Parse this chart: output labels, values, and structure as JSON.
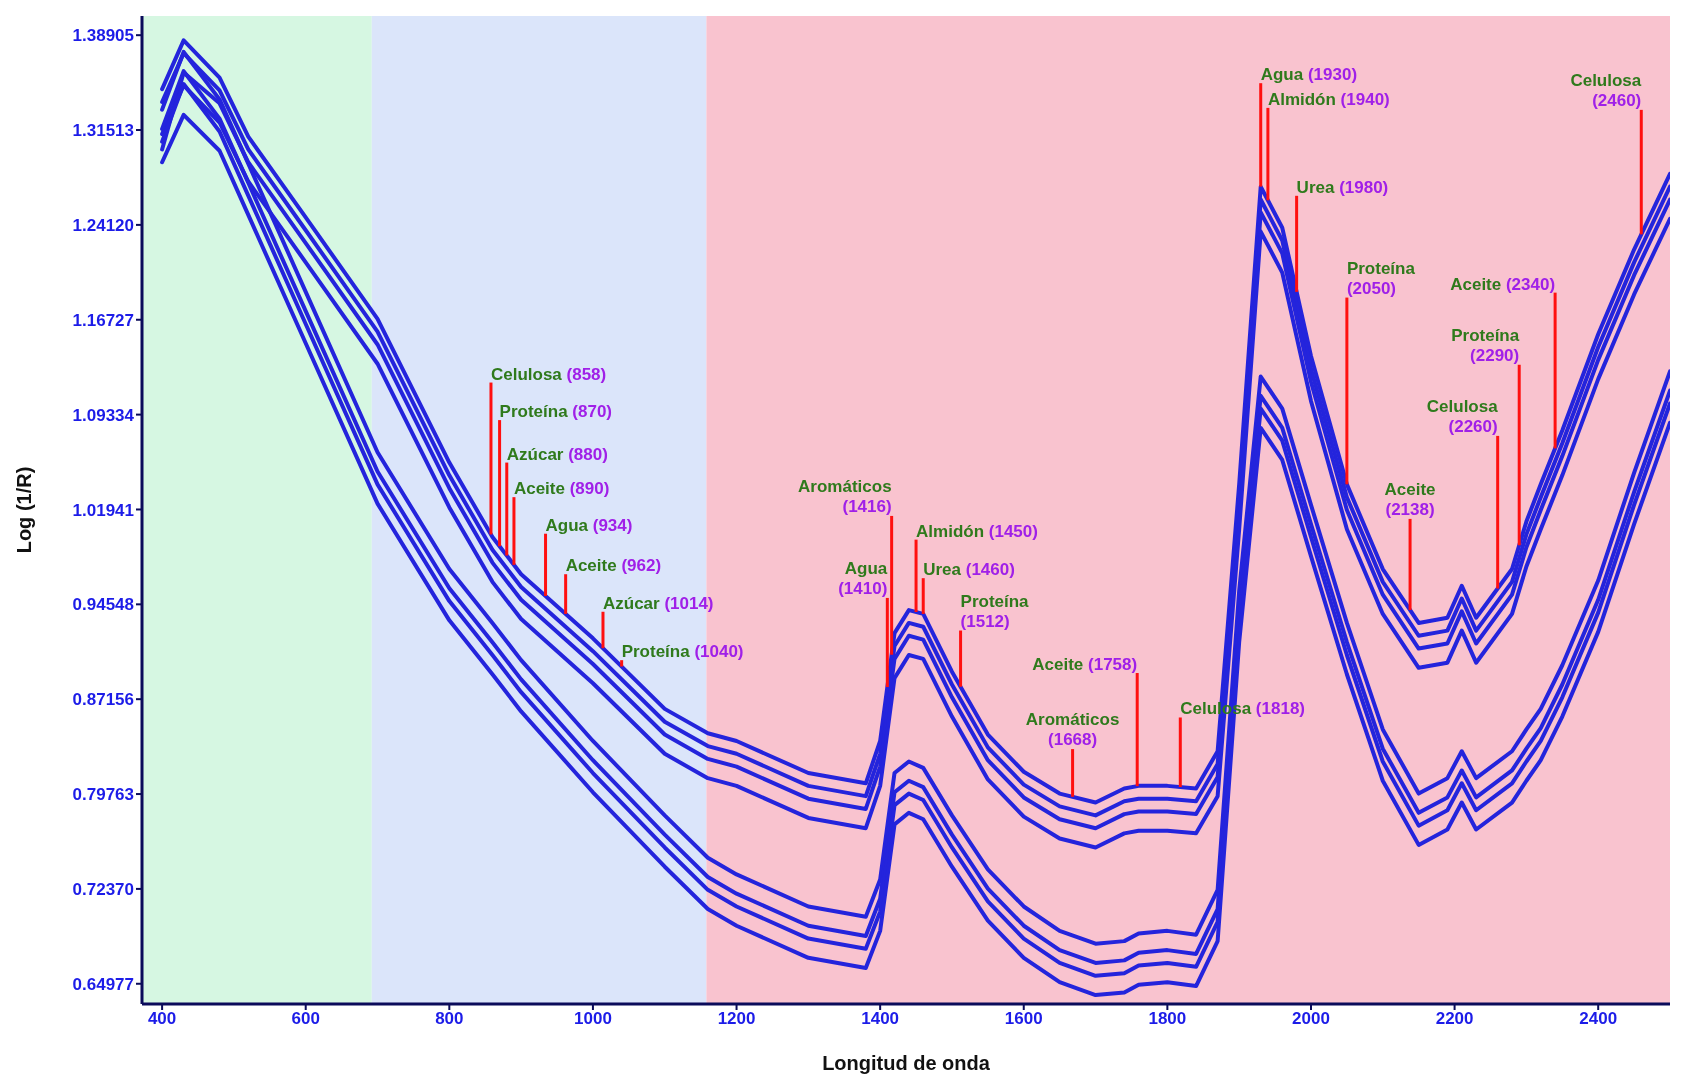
{
  "chart_data": {
    "type": "line",
    "xlabel": "Longitud de onda",
    "ylabel": "Log (1/R)",
    "x": [
      400,
      430,
      480,
      520,
      600,
      700,
      800,
      860,
      900,
      1000,
      1100,
      1160,
      1200,
      1300,
      1380,
      1400,
      1420,
      1440,
      1460,
      1500,
      1550,
      1600,
      1650,
      1700,
      1740,
      1760,
      1800,
      1840,
      1870,
      1900,
      1930,
      1960,
      2000,
      2050,
      2100,
      2150,
      2190,
      2210,
      2230,
      2280,
      2300,
      2320,
      2350,
      2400,
      2450,
      2500
    ],
    "series": [
      {
        "color": "#2424dc",
        "values": [
          1.347,
          1.385,
          1.356,
          1.31,
          1.247,
          1.168,
          1.056,
          0.998,
          0.969,
          0.919,
          0.864,
          0.845,
          0.839,
          0.814,
          0.806,
          0.839,
          0.923,
          0.941,
          0.938,
          0.893,
          0.844,
          0.815,
          0.798,
          0.791,
          0.802,
          0.804,
          0.804,
          0.802,
          0.831,
          1.039,
          1.271,
          1.239,
          1.139,
          1.039,
          0.973,
          0.931,
          0.935,
          0.96,
          0.935,
          0.973,
          1.01,
          1.039,
          1.081,
          1.156,
          1.222,
          1.281
        ]
      },
      {
        "color": "#2424dc",
        "values": [
          1.337,
          1.375,
          1.346,
          1.3,
          1.237,
          1.158,
          1.046,
          0.988,
          0.959,
          0.909,
          0.854,
          0.835,
          0.829,
          0.804,
          0.796,
          0.829,
          0.913,
          0.931,
          0.928,
          0.883,
          0.834,
          0.805,
          0.788,
          0.781,
          0.792,
          0.794,
          0.794,
          0.792,
          0.821,
          1.029,
          1.261,
          1.229,
          1.129,
          1.029,
          0.963,
          0.921,
          0.925,
          0.95,
          0.925,
          0.963,
          1.0,
          1.029,
          1.071,
          1.146,
          1.212,
          1.271
        ]
      },
      {
        "color": "#2424dc",
        "values": [
          1.3,
          1.36,
          1.336,
          1.29,
          1.227,
          1.148,
          1.036,
          0.978,
          0.949,
          0.899,
          0.844,
          0.825,
          0.819,
          0.794,
          0.786,
          0.819,
          0.903,
          0.921,
          0.918,
          0.873,
          0.824,
          0.795,
          0.778,
          0.771,
          0.782,
          0.784,
          0.784,
          0.782,
          0.811,
          1.019,
          1.251,
          1.219,
          1.119,
          1.019,
          0.953,
          0.911,
          0.915,
          0.94,
          0.915,
          0.953,
          0.99,
          1.019,
          1.061,
          1.136,
          1.202,
          1.261
        ]
      },
      {
        "color": "#2424dc",
        "values": [
          1.312,
          1.35,
          1.321,
          1.275,
          1.212,
          1.133,
          1.021,
          0.963,
          0.934,
          0.884,
          0.829,
          0.81,
          0.804,
          0.779,
          0.771,
          0.804,
          0.888,
          0.906,
          0.903,
          0.858,
          0.809,
          0.78,
          0.763,
          0.756,
          0.767,
          0.769,
          0.769,
          0.767,
          0.796,
          1.004,
          1.236,
          1.204,
          1.104,
          1.004,
          0.938,
          0.896,
          0.9,
          0.925,
          0.9,
          0.938,
          0.975,
          1.004,
          1.046,
          1.121,
          1.187,
          1.246
        ]
      },
      {
        "color": "#2424dc",
        "values": [
          1.331,
          1.376,
          1.339,
          1.289,
          1.189,
          1.064,
          0.973,
          0.931,
          0.902,
          0.839,
          0.781,
          0.748,
          0.735,
          0.71,
          0.702,
          0.731,
          0.814,
          0.823,
          0.818,
          0.781,
          0.739,
          0.71,
          0.691,
          0.681,
          0.683,
          0.689,
          0.691,
          0.688,
          0.723,
          0.956,
          1.123,
          1.098,
          1.023,
          0.931,
          0.848,
          0.798,
          0.81,
          0.831,
          0.81,
          0.831,
          0.848,
          0.864,
          0.898,
          0.964,
          1.048,
          1.127
        ]
      },
      {
        "color": "#2424dc",
        "values": [
          1.316,
          1.361,
          1.324,
          1.274,
          1.174,
          1.049,
          0.958,
          0.916,
          0.887,
          0.824,
          0.766,
          0.733,
          0.72,
          0.695,
          0.687,
          0.716,
          0.799,
          0.808,
          0.803,
          0.766,
          0.724,
          0.695,
          0.676,
          0.666,
          0.668,
          0.674,
          0.676,
          0.673,
          0.708,
          0.941,
          1.108,
          1.083,
          1.008,
          0.916,
          0.833,
          0.783,
          0.795,
          0.816,
          0.795,
          0.816,
          0.833,
          0.849,
          0.883,
          0.949,
          1.033,
          1.112
        ]
      },
      {
        "color": "#2424dc",
        "values": [
          1.306,
          1.351,
          1.314,
          1.264,
          1.164,
          1.039,
          0.948,
          0.906,
          0.877,
          0.814,
          0.756,
          0.723,
          0.71,
          0.685,
          0.677,
          0.706,
          0.789,
          0.798,
          0.793,
          0.756,
          0.714,
          0.685,
          0.666,
          0.656,
          0.658,
          0.664,
          0.666,
          0.663,
          0.698,
          0.931,
          1.098,
          1.073,
          0.998,
          0.906,
          0.823,
          0.773,
          0.785,
          0.806,
          0.785,
          0.806,
          0.823,
          0.839,
          0.873,
          0.939,
          1.023,
          1.102
        ]
      },
      {
        "color": "#2424dc",
        "values": [
          1.29,
          1.327,
          1.299,
          1.249,
          1.149,
          1.024,
          0.933,
          0.891,
          0.862,
          0.799,
          0.741,
          0.708,
          0.695,
          0.67,
          0.662,
          0.691,
          0.774,
          0.783,
          0.778,
          0.741,
          0.699,
          0.67,
          0.651,
          0.641,
          0.643,
          0.649,
          0.651,
          0.648,
          0.683,
          0.916,
          1.083,
          1.058,
          0.983,
          0.891,
          0.808,
          0.758,
          0.77,
          0.791,
          0.77,
          0.791,
          0.808,
          0.824,
          0.858,
          0.924,
          1.008,
          1.087
        ]
      }
    ],
    "xlim": [
      372,
      2500
    ],
    "xticks": [
      400,
      600,
      800,
      1000,
      1200,
      1400,
      1600,
      1800,
      2000,
      2200,
      2400
    ],
    "ylim": [
      0.634,
      1.404
    ],
    "yticks": [
      0.64977,
      {
        "value": 0.7237,
        "label": "0.72370"
      },
      0.79763,
      0.87156,
      0.94548,
      1.01941,
      1.09334,
      1.16727,
      {
        "value": 1.2412,
        "label": "1.24120"
      },
      1.31513,
      1.38905
    ],
    "grid": false,
    "legend": false,
    "marker": "none",
    "line_style": "solid",
    "bands": [
      {
        "axis": "x",
        "from": 372,
        "to": 692,
        "color": "#d6f7e2"
      },
      {
        "axis": "x",
        "from": 692,
        "to": 1158,
        "color": "#dbe5fa"
      },
      {
        "axis": "x",
        "from": 1158,
        "to": 2500,
        "color": "#f9c3cf"
      }
    ],
    "ref_lines": [
      {
        "axis": "x",
        "value": 858,
        "label": "Celulosa (858)",
        "color": "#ff1010"
      },
      {
        "axis": "x",
        "value": 870,
        "label": "Proteína (870)",
        "color": "#ff1010"
      },
      {
        "axis": "x",
        "value": 880,
        "label": "Azúcar (880)",
        "color": "#ff1010"
      },
      {
        "axis": "x",
        "value": 890,
        "label": "Aceite (890)",
        "color": "#ff1010"
      },
      {
        "axis": "x",
        "value": 934,
        "label": "Agua (934)",
        "color": "#ff1010"
      },
      {
        "axis": "x",
        "value": 962,
        "label": "Aceite (962)",
        "color": "#ff1010"
      },
      {
        "axis": "x",
        "value": 1014,
        "label": "Azúcar (1014)",
        "color": "#ff1010"
      },
      {
        "axis": "x",
        "value": 1040,
        "label": "Proteína (1040)",
        "color": "#ff1010"
      },
      {
        "axis": "x",
        "value": 1410,
        "label": "Agua (1410)",
        "color": "#ff1010"
      },
      {
        "axis": "x",
        "value": 1416,
        "label": "Aromáticos (1416)",
        "color": "#ff1010"
      },
      {
        "axis": "x",
        "value": 1450,
        "label": "Almidón (1450)",
        "color": "#ff1010"
      },
      {
        "axis": "x",
        "value": 1460,
        "label": "Urea (1460)",
        "color": "#ff1010"
      },
      {
        "axis": "x",
        "value": 1512,
        "label": "Proteína (1512)",
        "color": "#ff1010"
      },
      {
        "axis": "x",
        "value": 1668,
        "label": "Aromáticos (1668)",
        "color": "#ff1010"
      },
      {
        "axis": "x",
        "value": 1758,
        "label": "Aceite (1758)",
        "color": "#ff1010"
      },
      {
        "axis": "x",
        "value": 1818,
        "label": "Celulosa (1818)",
        "color": "#ff1010"
      },
      {
        "axis": "x",
        "value": 1930,
        "label": "Agua (1930)",
        "color": "#ff1010"
      },
      {
        "axis": "x",
        "value": 1940,
        "label": "Almidón (1940)",
        "color": "#ff1010"
      },
      {
        "axis": "x",
        "value": 1980,
        "label": "Urea (1980)",
        "color": "#ff1010"
      },
      {
        "axis": "x",
        "value": 2050,
        "label": "Proteína (2050)",
        "color": "#ff1010"
      },
      {
        "axis": "x",
        "value": 2138,
        "label": "Aceite (2138)",
        "color": "#ff1010"
      },
      {
        "axis": "x",
        "value": 2260,
        "label": "Celulosa (2260)",
        "color": "#ff1010"
      },
      {
        "axis": "x",
        "value": 2290,
        "label": "Proteína (2290)",
        "color": "#ff1010"
      },
      {
        "axis": "x",
        "value": 2340,
        "label": "Aceite (2340)",
        "color": "#ff1010"
      },
      {
        "axis": "x",
        "value": 2460,
        "label": "Celulosa (2460)",
        "color": "#ff1010"
      }
    ]
  }
}
